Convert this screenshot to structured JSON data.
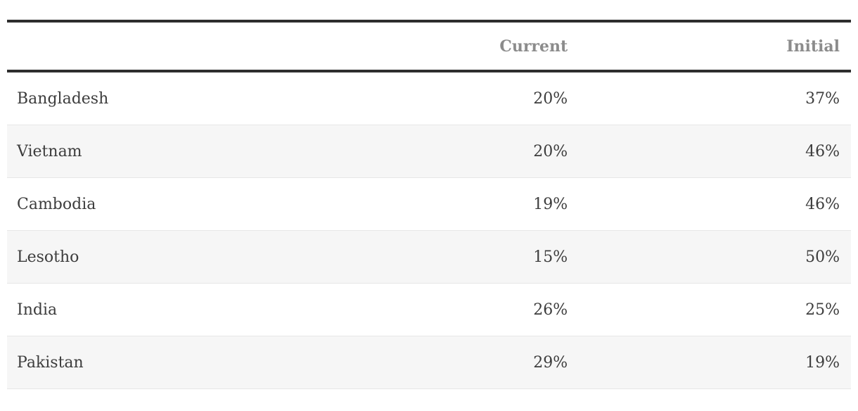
{
  "table": {
    "columns": {
      "country": "",
      "current": "Current",
      "initial": "Initial"
    },
    "rows": [
      {
        "country": "Bangladesh",
        "current": "20%",
        "initial": "37%"
      },
      {
        "country": "Vietnam",
        "current": "20%",
        "initial": "46%"
      },
      {
        "country": "Cambodia",
        "current": "19%",
        "initial": "46%"
      },
      {
        "country": "Lesotho",
        "current": "15%",
        "initial": "50%"
      },
      {
        "country": "India",
        "current": "26%",
        "initial": "25%"
      },
      {
        "country": "Pakistan",
        "current": "29%",
        "initial": "19%"
      }
    ]
  },
  "colors": {
    "rule": "#2e2e2e",
    "header_text": "#8c8c8c",
    "body_text": "#3d3d3d",
    "alt_row_bg": "#f6f6f6",
    "row_border": "#e7e7e7"
  }
}
